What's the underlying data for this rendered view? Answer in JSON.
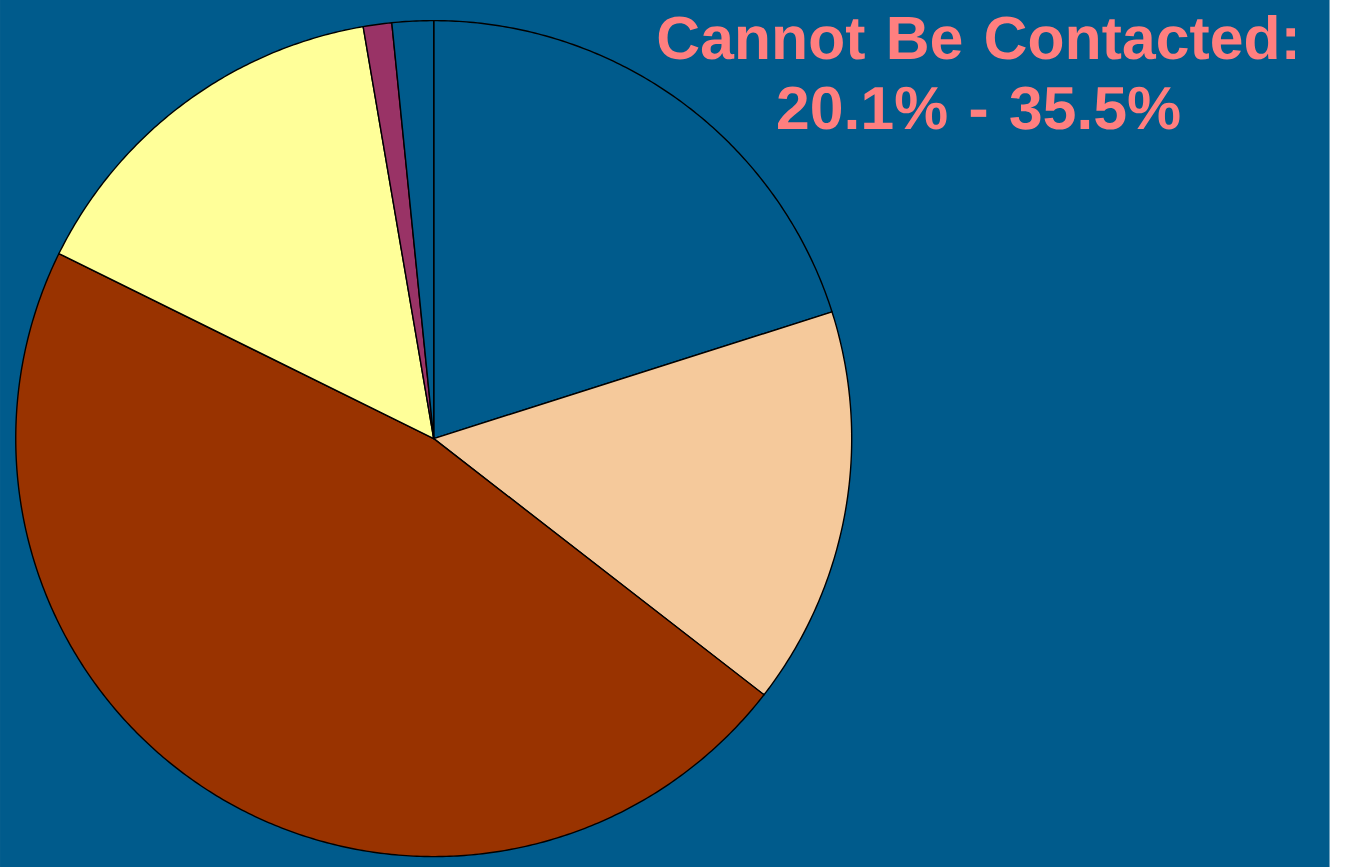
{
  "chart_data": {
    "type": "pie",
    "title": "Cannot Be Contacted: 20.1% - 35.5%",
    "categories": [
      null,
      null,
      null,
      null,
      null,
      null
    ],
    "values": [
      20.1,
      15.4,
      46.8,
      15.0,
      1.1,
      1.6
    ],
    "colors": [
      "#005b8c",
      "#f5c99b",
      "#993300",
      "#ffff99",
      "#993366",
      "#005b8c"
    ]
  }
}
